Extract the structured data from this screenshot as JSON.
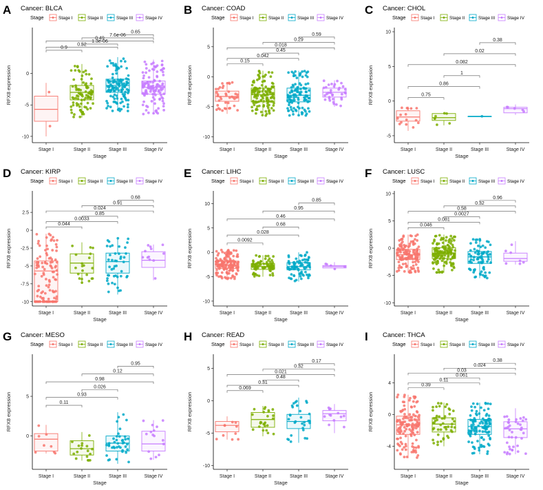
{
  "figure": {
    "y_label": "RFX8 expression",
    "x_label": "Stage",
    "legend_title": "Stage",
    "stages": [
      "Stage I",
      "Stage II",
      "Stage III",
      "Stage IV"
    ],
    "stage_colors": [
      "#F8766D",
      "#7CAE00",
      "#00A9C8",
      "#C77CFF"
    ]
  },
  "chart_data": [
    {
      "type": "box",
      "letter": "A",
      "title": "Cancer: BLCA",
      "ylim": [
        -11,
        7.3
      ],
      "yticks": [
        -10,
        -5,
        0
      ],
      "boxes": [
        {
          "q1": -7.6,
          "median": -5.7,
          "q3": -3.6,
          "lo": -10,
          "hi": -1.5,
          "n": 2
        },
        {
          "q1": -4.2,
          "median": -3.0,
          "q3": -1.9,
          "lo": -7.0,
          "hi": 1.5,
          "n": 90
        },
        {
          "q1": -3.0,
          "median": -1.9,
          "q3": -0.9,
          "lo": -6.0,
          "hi": 2.6,
          "n": 120
        },
        {
          "q1": -3.3,
          "median": -2.2,
          "q3": -1.2,
          "lo": -6.5,
          "hi": 2.2,
          "n": 120
        }
      ],
      "comparisons": [
        {
          "a": 0,
          "b": 1,
          "p": "0.9"
        },
        {
          "a": 0,
          "b": 2,
          "p": "0.52"
        },
        {
          "a": 0,
          "b": 3,
          "p": "0.49"
        },
        {
          "a": 1,
          "b": 2,
          "p": "1.3e-06"
        },
        {
          "a": 1,
          "b": 3,
          "p": "7.6e-06"
        },
        {
          "a": 2,
          "b": 3,
          "p": "0.65"
        }
      ]
    },
    {
      "type": "box",
      "letter": "B",
      "title": "Cancer: COAD",
      "ylim": [
        -11,
        8.2
      ],
      "yticks": [
        -10,
        -5,
        0,
        5
      ],
      "boxes": [
        {
          "q1": -4.1,
          "median": -3.3,
          "q3": -2.4,
          "lo": -6.2,
          "hi": -0.9,
          "n": 40
        },
        {
          "q1": -4.2,
          "median": -3.0,
          "q3": -1.9,
          "lo": -6.5,
          "hi": 1.0,
          "n": 130
        },
        {
          "q1": -4.2,
          "median": -3.1,
          "q3": -1.9,
          "lo": -6.5,
          "hi": 1.0,
          "n": 110
        },
        {
          "q1": -3.4,
          "median": -2.6,
          "q3": -1.9,
          "lo": -5.0,
          "hi": -0.6,
          "n": 35
        }
      ],
      "comparisons": [
        {
          "a": 0,
          "b": 1,
          "p": "0.15"
        },
        {
          "a": 0,
          "b": 2,
          "p": "0.042"
        },
        {
          "a": 0,
          "b": 3,
          "p": "0.018"
        },
        {
          "a": 1,
          "b": 2,
          "p": "0.45"
        },
        {
          "a": 1,
          "b": 3,
          "p": "0.29"
        },
        {
          "a": 2,
          "b": 3,
          "p": "0.59"
        }
      ]
    },
    {
      "type": "box",
      "letter": "C",
      "title": "Cancer: CHOL",
      "ylim": [
        -6,
        10.6
      ],
      "yticks": [
        -5,
        0,
        5,
        10
      ],
      "boxes": [
        {
          "q1": -2.9,
          "median": -2.3,
          "q3": -1.4,
          "lo": -4.3,
          "hi": -0.8,
          "n": 15
        },
        {
          "q1": -2.8,
          "median": -2.4,
          "q3": -1.8,
          "lo": -3.5,
          "hi": -1.6,
          "n": 7
        },
        {
          "q1": -2.2,
          "median": -2.2,
          "q3": -2.2,
          "lo": -2.2,
          "hi": -2.2,
          "n": 1
        },
        {
          "q1": -1.7,
          "median": -1.1,
          "q3": -0.9,
          "lo": -2.0,
          "hi": -0.5,
          "n": 5
        }
      ],
      "comparisons": [
        {
          "a": 0,
          "b": 1,
          "p": "0.75"
        },
        {
          "a": 0,
          "b": 2,
          "p": "0.86"
        },
        {
          "a": 0,
          "b": 3,
          "p": "0.082"
        },
        {
          "a": 1,
          "b": 2,
          "p": "1"
        },
        {
          "a": 1,
          "b": 3,
          "p": "0.02"
        },
        {
          "a": 2,
          "b": 3,
          "p": "0.38"
        }
      ]
    },
    {
      "type": "box",
      "letter": "D",
      "title": "Cancer: KIRP",
      "ylim": [
        -10.6,
        5.5
      ],
      "yticks": [
        -10.0,
        -7.5,
        -5.0,
        -2.5,
        0.0,
        2.5
      ],
      "boxes": [
        {
          "q1": -10,
          "median": -5.7,
          "q3": -4.3,
          "lo": -10,
          "hi": -0.5,
          "n": 120
        },
        {
          "q1": -6.0,
          "median": -4.6,
          "q3": -3.3,
          "lo": -7.5,
          "hi": -1.7,
          "n": 20
        },
        {
          "q1": -6.0,
          "median": -4.4,
          "q3": -3.2,
          "lo": -9.0,
          "hi": -1.1,
          "n": 45
        },
        {
          "q1": -5.2,
          "median": -4.2,
          "q3": -3.0,
          "lo": -7.0,
          "hi": -2.0,
          "n": 12
        }
      ],
      "comparisons": [
        {
          "a": 0,
          "b": 1,
          "p": "0.044"
        },
        {
          "a": 0,
          "b": 2,
          "p": "0.0033"
        },
        {
          "a": 0,
          "b": 3,
          "p": "0.024"
        },
        {
          "a": 1,
          "b": 2,
          "p": "0.85"
        },
        {
          "a": 1,
          "b": 3,
          "p": "0.91"
        },
        {
          "a": 2,
          "b": 3,
          "p": "0.68"
        }
      ]
    },
    {
      "type": "box",
      "letter": "E",
      "title": "Cancer: LIHC",
      "ylim": [
        -11,
        12.6
      ],
      "yticks": [
        -10,
        -5,
        0,
        5,
        10
      ],
      "boxes": [
        {
          "q1": -3.3,
          "median": -2.6,
          "q3": -1.8,
          "lo": -5.5,
          "hi": 0.5,
          "n": 150
        },
        {
          "q1": -3.5,
          "median": -2.9,
          "q3": -2.3,
          "lo": -5.0,
          "hi": -0.6,
          "n": 80
        },
        {
          "q1": -3.6,
          "median": -2.9,
          "q3": -2.1,
          "lo": -6.0,
          "hi": 0.0,
          "n": 80
        },
        {
          "q1": -3.2,
          "median": -2.9,
          "q3": -2.7,
          "lo": -3.5,
          "hi": -2.0,
          "n": 5
        }
      ],
      "comparisons": [
        {
          "a": 0,
          "b": 1,
          "p": "0.0092"
        },
        {
          "a": 0,
          "b": 2,
          "p": "0.028"
        },
        {
          "a": 0,
          "b": 3,
          "p": "0.46"
        },
        {
          "a": 1,
          "b": 2,
          "p": "0.68"
        },
        {
          "a": 1,
          "b": 3,
          "p": "0.95"
        },
        {
          "a": 2,
          "b": 3,
          "p": "0.85"
        }
      ]
    },
    {
      "type": "box",
      "letter": "F",
      "title": "Cancer: LUSC",
      "ylim": [
        -10.6,
        10.5
      ],
      "yticks": [
        -10,
        -5,
        0,
        5,
        10
      ],
      "boxes": [
        {
          "q1": -2.1,
          "median": -1.2,
          "q3": -0.2,
          "lo": -4.5,
          "hi": 2.5,
          "n": 200
        },
        {
          "q1": -1.9,
          "median": -0.9,
          "q3": 0.1,
          "lo": -4.5,
          "hi": 2.5,
          "n": 160
        },
        {
          "q1": -2.8,
          "median": -1.6,
          "q3": -0.6,
          "lo": -5.5,
          "hi": 1.8,
          "n": 80
        },
        {
          "q1": -2.4,
          "median": -1.9,
          "q3": -0.9,
          "lo": -3.0,
          "hi": 1.3,
          "n": 7
        }
      ],
      "comparisons": [
        {
          "a": 0,
          "b": 1,
          "p": "0.046"
        },
        {
          "a": 0,
          "b": 2,
          "p": "0.081"
        },
        {
          "a": 0,
          "b": 3,
          "p": "0.58"
        },
        {
          "a": 1,
          "b": 2,
          "p": "0.0027"
        },
        {
          "a": 1,
          "b": 3,
          "p": "0.32"
        },
        {
          "a": 2,
          "b": 3,
          "p": "0.96"
        }
      ]
    },
    {
      "type": "box",
      "letter": "G",
      "title": "Cancer: MESO",
      "ylim": [
        -4.2,
        10.3
      ],
      "yticks": [
        0,
        5
      ],
      "boxes": [
        {
          "q1": -1.9,
          "median": -0.4,
          "q3": 0.3,
          "lo": -2.2,
          "hi": 1.4,
          "n": 8
        },
        {
          "q1": -2.4,
          "median": -1.6,
          "q3": -0.6,
          "lo": -3.1,
          "hi": 0.5,
          "n": 17
        },
        {
          "q1": -1.9,
          "median": -0.9,
          "q3": 0.0,
          "lo": -3.5,
          "hi": 3.0,
          "n": 40
        },
        {
          "q1": -1.9,
          "median": -1.0,
          "q3": 0.6,
          "lo": -3.0,
          "hi": 2.0,
          "n": 15
        }
      ],
      "comparisons": [
        {
          "a": 0,
          "b": 1,
          "p": "0.11"
        },
        {
          "a": 0,
          "b": 2,
          "p": "0.93"
        },
        {
          "a": 0,
          "b": 3,
          "p": "0.98"
        },
        {
          "a": 1,
          "b": 2,
          "p": "0.026"
        },
        {
          "a": 1,
          "b": 3,
          "p": "0.12"
        },
        {
          "a": 2,
          "b": 3,
          "p": "0.95"
        }
      ]
    },
    {
      "type": "box",
      "letter": "H",
      "title": "Cancer: READ",
      "ylim": [
        -10.6,
        7.2
      ],
      "yticks": [
        -10,
        -5,
        0,
        5
      ],
      "boxes": [
        {
          "q1": -4.8,
          "median": -3.8,
          "q3": -3.2,
          "lo": -6.0,
          "hi": -2.4,
          "n": 10
        },
        {
          "q1": -4.1,
          "median": -2.9,
          "q3": -1.8,
          "lo": -5.5,
          "hi": -0.8,
          "n": 25
        },
        {
          "q1": -4.3,
          "median": -3.2,
          "q3": -2.1,
          "lo": -6.5,
          "hi": 0.5,
          "n": 30
        },
        {
          "q1": -3.1,
          "median": -2.0,
          "q3": -1.5,
          "lo": -5.0,
          "hi": -0.5,
          "n": 12
        }
      ],
      "comparisons": [
        {
          "a": 0,
          "b": 1,
          "p": "0.069"
        },
        {
          "a": 0,
          "b": 2,
          "p": "0.31"
        },
        {
          "a": 0,
          "b": 3,
          "p": "0.021"
        },
        {
          "a": 1,
          "b": 2,
          "p": "0.48"
        },
        {
          "a": 1,
          "b": 3,
          "p": "0.32"
        },
        {
          "a": 2,
          "b": 3,
          "p": "0.17"
        }
      ]
    },
    {
      "type": "box",
      "letter": "I",
      "title": "Cancer: THCA",
      "ylim": [
        -6.9,
        7.6
      ],
      "yticks": [
        -4,
        0,
        4
      ],
      "boxes": [
        {
          "q1": -2.5,
          "median": -1.3,
          "q3": -0.2,
          "lo": -5.5,
          "hi": 2.5,
          "n": 280
        },
        {
          "q1": -2.2,
          "median": -1.2,
          "q3": -0.4,
          "lo": -4.0,
          "hi": 1.5,
          "n": 50
        },
        {
          "q1": -2.5,
          "median": -1.5,
          "q3": -0.6,
          "lo": -5.0,
          "hi": 1.5,
          "n": 110
        },
        {
          "q1": -2.9,
          "median": -1.8,
          "q3": -0.9,
          "lo": -5.0,
          "hi": 0.8,
          "n": 40
        }
      ],
      "comparisons": [
        {
          "a": 0,
          "b": 1,
          "p": "0.39"
        },
        {
          "a": 0,
          "b": 2,
          "p": "0.11"
        },
        {
          "a": 0,
          "b": 3,
          "p": "0.03"
        },
        {
          "a": 1,
          "b": 2,
          "p": "0.061"
        },
        {
          "a": 1,
          "b": 3,
          "p": "0.024"
        },
        {
          "a": 2,
          "b": 3,
          "p": "0.38"
        }
      ]
    }
  ]
}
